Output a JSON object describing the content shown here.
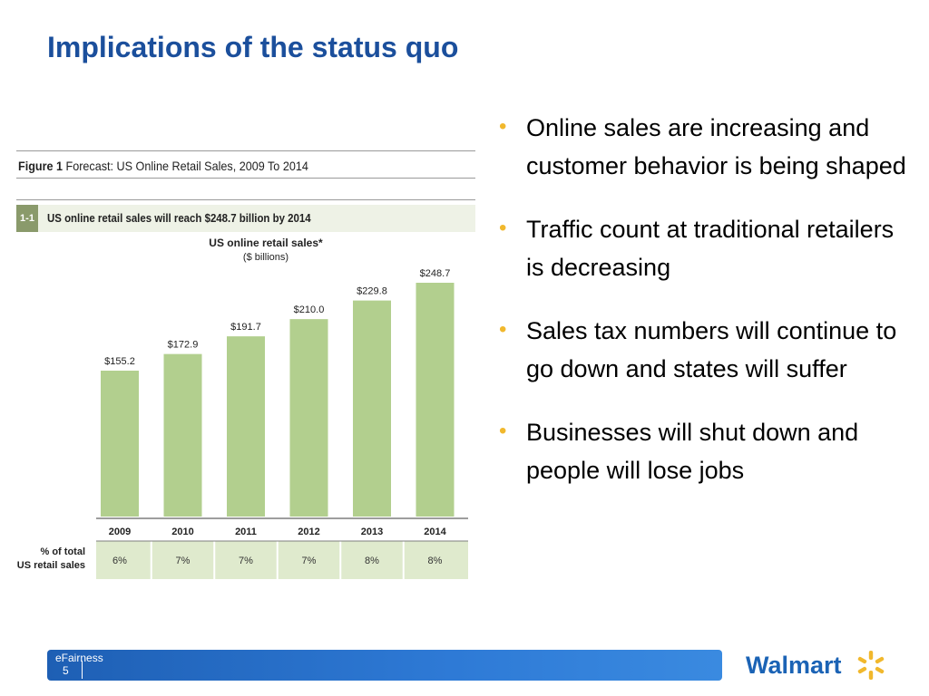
{
  "slide": {
    "title": "Implications of the status quo",
    "footer": {
      "label": "eFairness",
      "page": "5"
    },
    "logo": {
      "text": "Walmart"
    }
  },
  "figure": {
    "label": "Figure 1",
    "title": "Forecast: US Online Retail Sales, 2009 To 2014",
    "subfigure_number": "1-1",
    "subfigure_title": "US online retail sales will reach $248.7 billion by 2014"
  },
  "bullets": [
    "Online sales are increasing and customer behavior is being shaped",
    "Traffic count at traditional retailers is decreasing",
    "Sales tax numbers will continue to go down and states will suffer",
    "Businesses will shut down and people will lose jobs"
  ],
  "chart_data": {
    "type": "bar",
    "title": "US online retail sales*",
    "subtitle": "($ billions)",
    "categories": [
      "2009",
      "2010",
      "2011",
      "2012",
      "2013",
      "2014"
    ],
    "values": [
      155.2,
      172.9,
      191.7,
      210.0,
      229.8,
      248.7
    ],
    "value_labels": [
      "$155.2",
      "$172.9",
      "$191.7",
      "$210.0",
      "$229.8",
      "$248.7"
    ],
    "ylim": [
      0,
      248.7
    ],
    "bar_color": "#b2cf8e",
    "table": {
      "row_label": [
        "% of total",
        "US retail sales"
      ],
      "values": [
        "6%",
        "7%",
        "7%",
        "7%",
        "8%",
        "8%"
      ]
    }
  },
  "colors": {
    "title": "#1b4f9c",
    "bullet": "#f1b82d",
    "footer": "#2e7ad6",
    "logo_text": "#1b63b5",
    "logo_spark": "#f1b82d"
  }
}
